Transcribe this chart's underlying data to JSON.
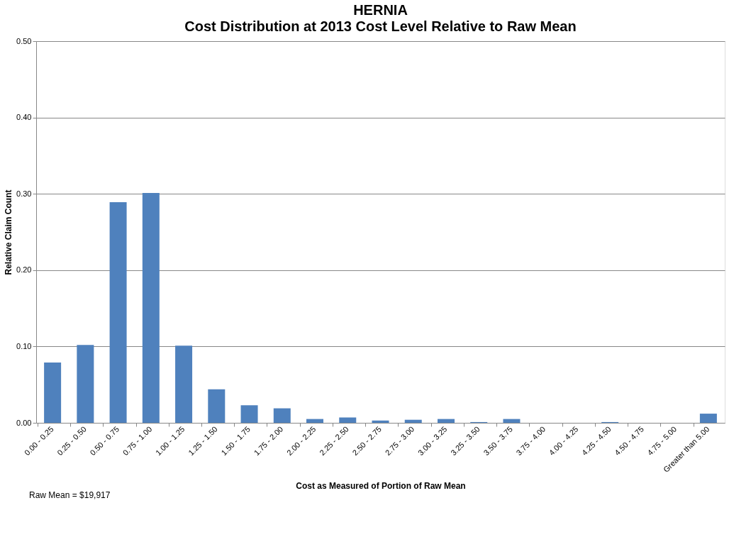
{
  "chart_data": {
    "type": "bar",
    "title": "HERNIA",
    "subtitle": "Cost Distribution at 2013 Cost Level Relative to Raw Mean",
    "xlabel": "Cost as Measured of Portion of Raw Mean",
    "ylabel": "Relative Claim Count",
    "categories": [
      "0.00 - 0.25",
      "0.25 - 0.50",
      "0.50 - 0.75",
      "0.75 - 1.00",
      "1.00 - 1.25",
      "1.25 - 1.50",
      "1.50 - 1.75",
      "1.75 - 2.00",
      "2.00 - 2.25",
      "2.25 - 2.50",
      "2.50 - 2.75",
      "2.75 - 3.00",
      "3.00 - 3.25",
      "3.25 - 3.50",
      "3.50 - 3.75",
      "3.75 - 4.00",
      "4.00 - 4.25",
      "4.25 - 4.50",
      "4.50 - 4.75",
      "4.75 - 5.00",
      "Greater than 5.00"
    ],
    "values": [
      0.079,
      0.102,
      0.289,
      0.301,
      0.101,
      0.044,
      0.023,
      0.019,
      0.005,
      0.007,
      0.003,
      0.004,
      0.005,
      0.001,
      0.005,
      0,
      0,
      0.001,
      0,
      0,
      0.012
    ],
    "color": "#4f81bd",
    "ylim": [
      0,
      0.5
    ],
    "yticks": [
      {
        "value": 0,
        "label": "0.00"
      },
      {
        "value": 0.1,
        "label": "0.10"
      },
      {
        "value": 0.2,
        "label": "0.20"
      },
      {
        "value": 0.3,
        "label": "0.30"
      },
      {
        "value": 0.4,
        "label": "0.40"
      },
      {
        "value": 0.5,
        "label": "0.50"
      }
    ],
    "grid": "y",
    "annotations": [
      "Raw Mean = $19,917"
    ]
  }
}
